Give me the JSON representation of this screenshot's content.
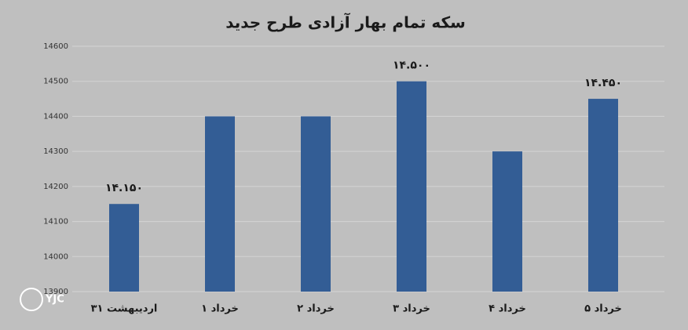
{
  "chart_data": {
    "type": "bar",
    "title": "سکه تمام بهار آزادی طرح جدید",
    "categories": [
      "۳۱ اردیبهشت",
      "۱ خرداد",
      "۲ خرداد",
      "۳ خرداد",
      "۴ خرداد",
      "۵ خرداد"
    ],
    "values": [
      14150,
      14400,
      14400,
      14500,
      14300,
      14450
    ],
    "value_labels": [
      "۱۴.۱۵۰",
      null,
      null,
      "۱۴.۵۰۰",
      null,
      "۱۴.۴۵۰"
    ],
    "color": "#335d95",
    "ylim": [
      13900,
      14600
    ],
    "yticks": [
      13900,
      14000,
      14100,
      14200,
      14300,
      14400,
      14500,
      14600
    ],
    "grid": true,
    "watermark": "YJC"
  }
}
